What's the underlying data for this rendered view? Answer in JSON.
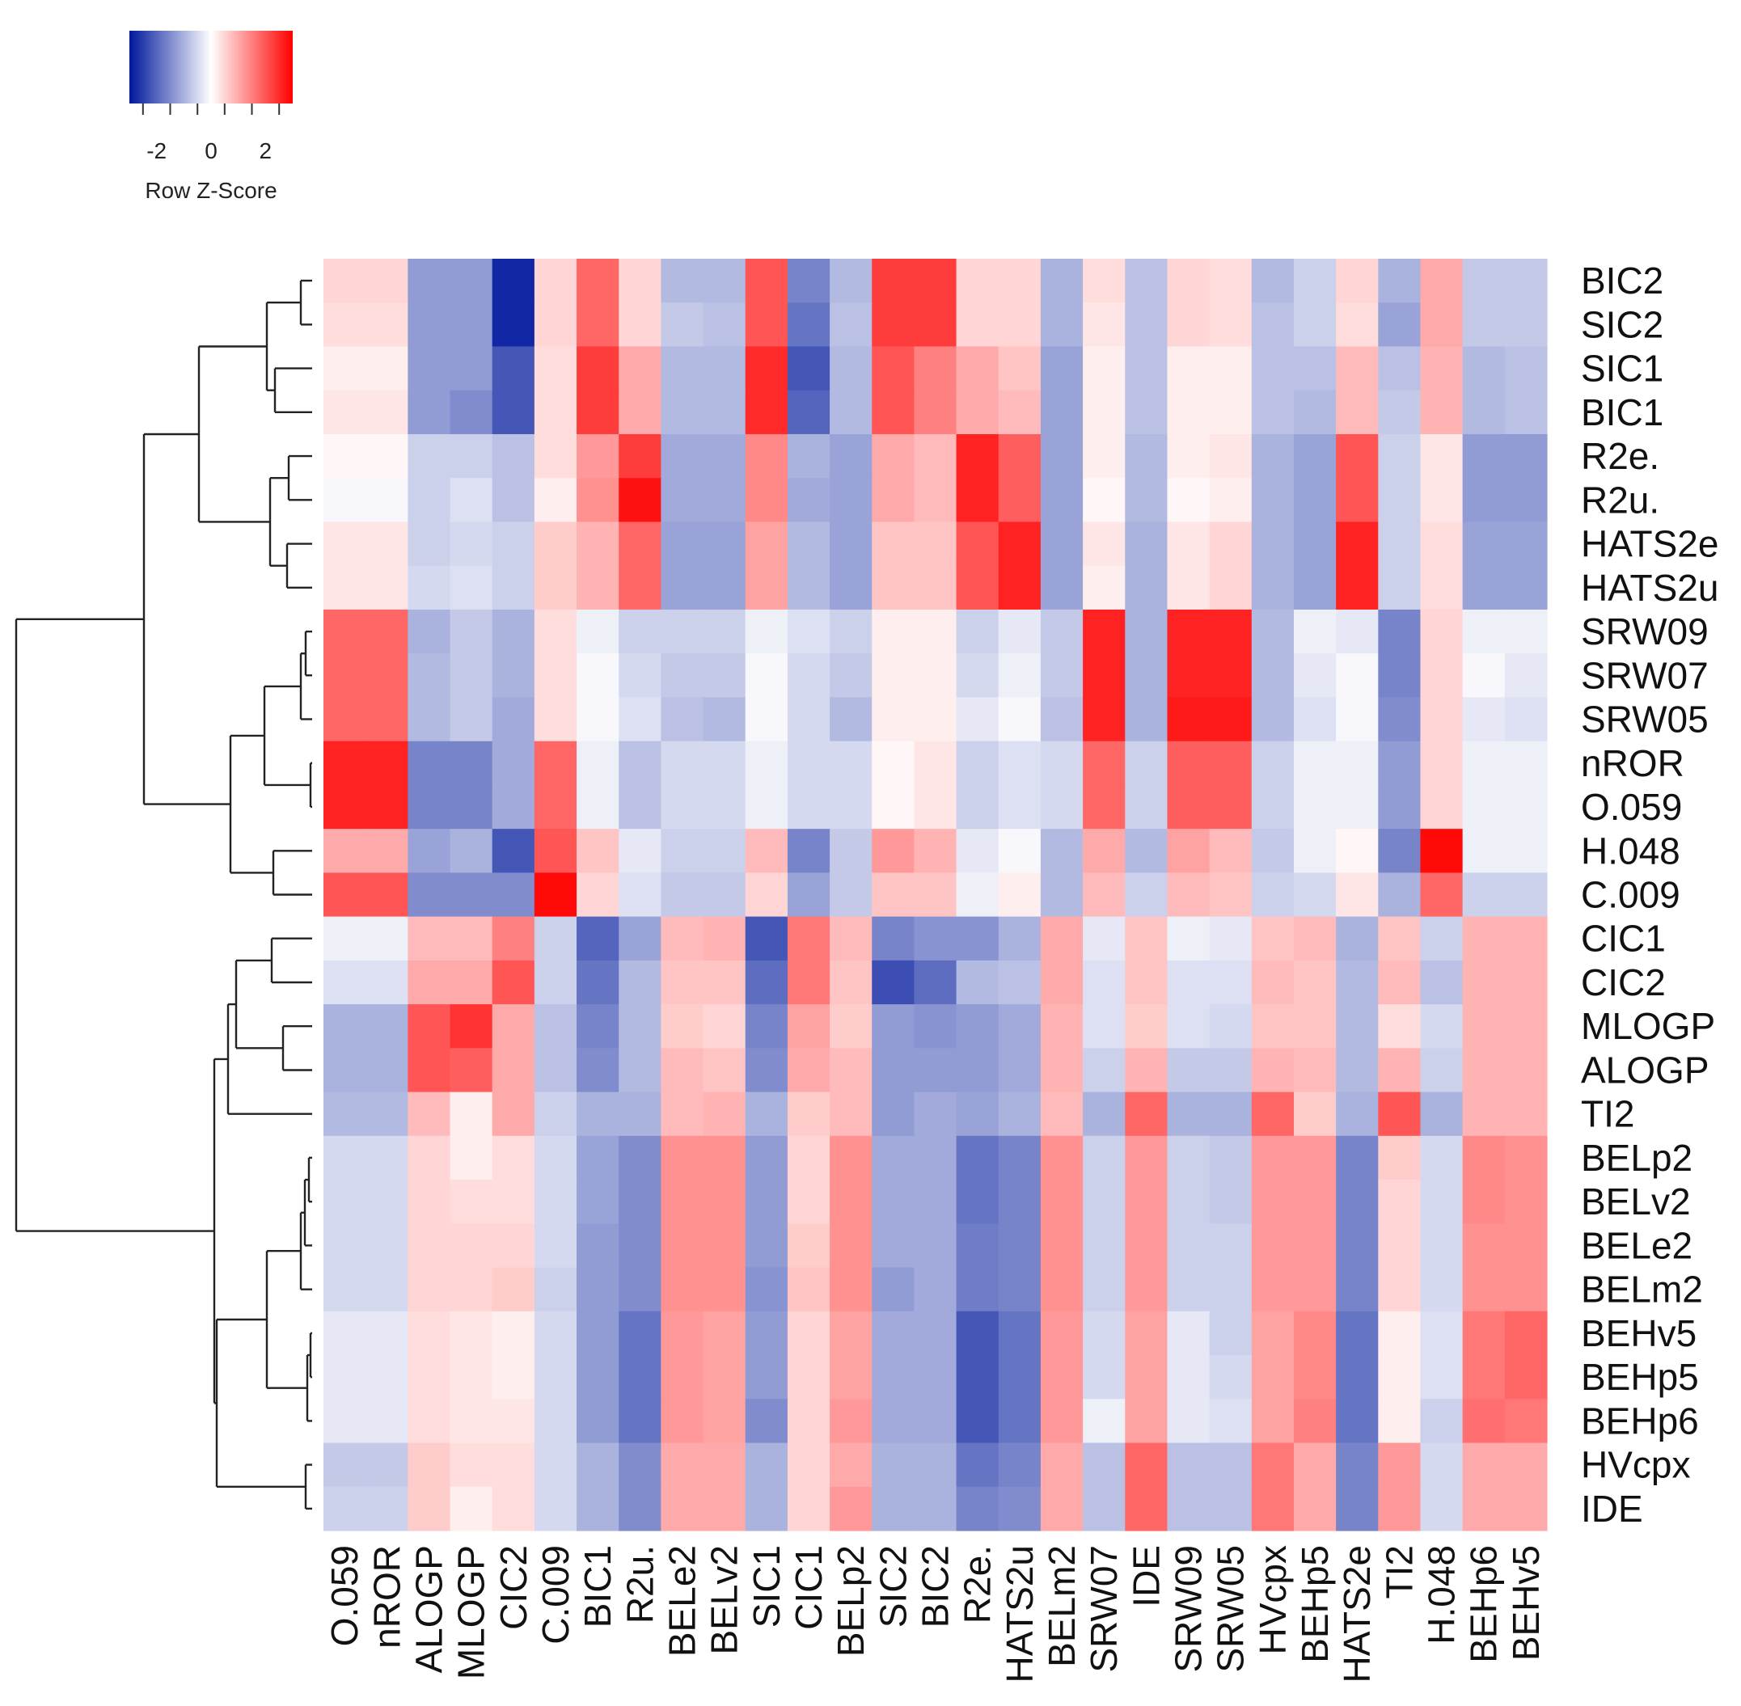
{
  "chart_data": {
    "type": "heatmap",
    "title": "",
    "xlabel": "",
    "ylabel": "",
    "color_key": {
      "title": "Row Z-Score",
      "ticks": [
        "-2",
        "0",
        "2"
      ],
      "range": [
        -3,
        3
      ],
      "colors": {
        "low": "#00189c",
        "mid": "#ffffff",
        "high": "#ff0000"
      }
    },
    "dendrogram": "rows",
    "rows": [
      "BIC2",
      "SIC2",
      "SIC1",
      "BIC1",
      "R2e.",
      "R2u.",
      "HATS2e",
      "HATS2u",
      "SRW09",
      "SRW07",
      "SRW05",
      "nROR",
      "O.059",
      "H.048",
      "C.009",
      "CIC1",
      "CIC2",
      "MLOGP",
      "ALOGP",
      "TI2",
      "BELp2",
      "BELv2",
      "BELe2",
      "BELm2",
      "BEHv5",
      "BEHp5",
      "BEHp6",
      "HVcpx",
      "IDE"
    ],
    "columns": [
      "O.059",
      "nROR",
      "ALOGP",
      "MLOGP",
      "CIC2",
      "C.009",
      "BIC1",
      "R2u.",
      "BELe2",
      "BELv2",
      "SIC1",
      "CIC1",
      "BELp2",
      "SIC2",
      "BIC2",
      "R2e.",
      "HATS2u",
      "BELm2",
      "SRW07",
      "IDE",
      "SRW09",
      "SRW05",
      "HVcpx",
      "BEHp5",
      "HATS2e",
      "TI2",
      "H.048",
      "BEHp6",
      "BEHv5"
    ],
    "values": [
      [
        0.5,
        0.5,
        -1.3,
        -1.3,
        -2.8,
        0.5,
        1.8,
        0.5,
        -0.9,
        -0.9,
        2.0,
        -1.6,
        -0.9,
        2.3,
        2.3,
        0.5,
        0.5,
        -1.0,
        0.4,
        -0.8,
        0.5,
        0.4,
        -0.9,
        -0.6,
        0.5,
        -1.0,
        1.0,
        -0.7,
        -0.7
      ],
      [
        0.4,
        0.4,
        -1.3,
        -1.3,
        -2.8,
        0.5,
        1.8,
        0.5,
        -0.7,
        -0.8,
        2.0,
        -1.8,
        -0.8,
        2.3,
        2.3,
        0.5,
        0.5,
        -1.0,
        0.3,
        -0.8,
        0.5,
        0.4,
        -0.8,
        -0.6,
        0.4,
        -1.2,
        1.0,
        -0.7,
        -0.7
      ],
      [
        0.2,
        0.2,
        -1.3,
        -1.3,
        -2.2,
        0.4,
        2.3,
        1.0,
        -0.9,
        -0.9,
        2.5,
        -2.2,
        -0.9,
        2.0,
        1.5,
        1.0,
        0.7,
        -1.2,
        0.2,
        -0.8,
        0.2,
        0.2,
        -0.8,
        -0.8,
        0.8,
        -0.8,
        0.9,
        -0.9,
        -0.8
      ],
      [
        0.3,
        0.3,
        -1.3,
        -1.5,
        -2.2,
        0.4,
        2.3,
        1.0,
        -0.9,
        -0.9,
        2.5,
        -2.0,
        -0.9,
        2.0,
        1.5,
        1.0,
        0.8,
        -1.2,
        0.2,
        -0.8,
        0.2,
        0.2,
        -0.8,
        -0.9,
        0.8,
        -0.7,
        0.9,
        -0.9,
        -0.8
      ],
      [
        0.1,
        0.1,
        -0.6,
        -0.6,
        -0.8,
        0.4,
        1.2,
        2.3,
        -1.1,
        -1.1,
        1.4,
        -1.0,
        -1.2,
        1.0,
        0.8,
        2.6,
        1.9,
        -1.2,
        0.2,
        -0.9,
        0.2,
        0.3,
        -1.0,
        -1.2,
        2.0,
        -0.6,
        0.3,
        -1.3,
        -1.3
      ],
      [
        -0.1,
        -0.1,
        -0.6,
        -0.4,
        -0.8,
        0.2,
        1.3,
        2.8,
        -1.1,
        -1.1,
        1.4,
        -1.1,
        -1.2,
        1.0,
        0.8,
        2.6,
        1.9,
        -1.2,
        0.1,
        -0.9,
        0.1,
        0.2,
        -1.0,
        -1.2,
        2.0,
        -0.6,
        0.3,
        -1.3,
        -1.3
      ],
      [
        0.3,
        0.3,
        -0.6,
        -0.5,
        -0.6,
        0.6,
        0.9,
        1.8,
        -1.2,
        -1.2,
        1.1,
        -0.9,
        -1.2,
        0.7,
        0.7,
        2.0,
        2.6,
        -1.2,
        0.3,
        -1.0,
        0.3,
        0.5,
        -1.0,
        -1.2,
        2.6,
        -0.6,
        0.4,
        -1.2,
        -1.2
      ],
      [
        0.3,
        0.3,
        -0.5,
        -0.4,
        -0.6,
        0.6,
        0.9,
        1.8,
        -1.2,
        -1.2,
        1.1,
        -0.9,
        -1.2,
        0.7,
        0.7,
        2.0,
        2.6,
        -1.2,
        0.2,
        -1.0,
        0.3,
        0.5,
        -1.0,
        -1.2,
        2.6,
        -0.6,
        0.4,
        -1.2,
        -1.2
      ],
      [
        1.8,
        1.8,
        -1.0,
        -0.7,
        -1.0,
        0.4,
        -0.2,
        -0.6,
        -0.6,
        -0.6,
        -0.2,
        -0.4,
        -0.6,
        0.2,
        0.2,
        -0.6,
        -0.3,
        -0.7,
        2.6,
        -1.0,
        2.6,
        2.6,
        -0.9,
        -0.2,
        -0.3,
        -1.6,
        0.5,
        -0.2,
        -0.2
      ],
      [
        1.8,
        1.8,
        -0.9,
        -0.7,
        -1.0,
        0.4,
        -0.1,
        -0.5,
        -0.7,
        -0.7,
        -0.1,
        -0.5,
        -0.7,
        0.2,
        0.2,
        -0.5,
        -0.2,
        -0.7,
        2.6,
        -1.0,
        2.6,
        2.6,
        -0.9,
        -0.3,
        -0.1,
        -1.6,
        0.5,
        -0.1,
        -0.3
      ],
      [
        1.8,
        1.8,
        -0.9,
        -0.7,
        -1.1,
        0.4,
        -0.1,
        -0.4,
        -0.8,
        -0.9,
        -0.1,
        -0.5,
        -0.9,
        0.2,
        0.2,
        -0.3,
        -0.1,
        -0.8,
        2.6,
        -1.0,
        2.7,
        2.7,
        -0.9,
        -0.4,
        -0.1,
        -1.5,
        0.5,
        -0.3,
        -0.4
      ],
      [
        2.6,
        2.6,
        -1.6,
        -1.6,
        -1.1,
        1.8,
        -0.2,
        -0.8,
        -0.5,
        -0.5,
        -0.2,
        -0.5,
        -0.5,
        0.1,
        0.3,
        -0.6,
        -0.4,
        -0.5,
        1.8,
        -0.6,
        1.9,
        1.9,
        -0.6,
        -0.2,
        -0.2,
        -1.3,
        0.5,
        -0.2,
        -0.2
      ],
      [
        2.6,
        2.6,
        -1.6,
        -1.6,
        -1.1,
        1.8,
        -0.2,
        -0.8,
        -0.5,
        -0.5,
        -0.2,
        -0.5,
        -0.5,
        0.1,
        0.3,
        -0.6,
        -0.4,
        -0.5,
        1.8,
        -0.6,
        1.9,
        1.9,
        -0.6,
        -0.2,
        -0.2,
        -1.3,
        0.5,
        -0.2,
        -0.2
      ],
      [
        1.0,
        1.0,
        -1.2,
        -1.0,
        -2.2,
        2.0,
        0.7,
        -0.3,
        -0.6,
        -0.6,
        0.8,
        -1.6,
        -0.7,
        1.2,
        0.9,
        -0.3,
        -0.1,
        -0.9,
        1.0,
        -0.9,
        1.1,
        0.8,
        -0.7,
        -0.2,
        0.1,
        -1.6,
        2.9,
        -0.2,
        -0.2
      ],
      [
        2.0,
        2.0,
        -1.5,
        -1.5,
        -1.5,
        2.9,
        0.5,
        -0.4,
        -0.7,
        -0.7,
        0.5,
        -1.2,
        -0.7,
        0.7,
        0.7,
        -0.2,
        0.2,
        -0.9,
        0.8,
        -0.6,
        0.8,
        0.7,
        -0.6,
        -0.5,
        0.3,
        -1.0,
        1.8,
        -0.6,
        -0.6
      ],
      [
        -0.2,
        -0.2,
        0.8,
        0.8,
        1.5,
        -0.6,
        -2.0,
        -1.2,
        0.8,
        0.9,
        -2.2,
        1.6,
        0.8,
        -1.6,
        -1.4,
        -1.4,
        -1.0,
        1.0,
        -0.3,
        0.7,
        -0.2,
        -0.3,
        0.7,
        0.8,
        -1.0,
        0.7,
        -0.6,
        0.9,
        0.9
      ],
      [
        -0.4,
        -0.4,
        1.0,
        1.0,
        2.0,
        -0.6,
        -1.8,
        -0.9,
        0.7,
        0.7,
        -1.9,
        1.6,
        0.7,
        -2.3,
        -1.9,
        -0.9,
        -0.8,
        1.0,
        -0.4,
        0.7,
        -0.4,
        -0.4,
        0.8,
        0.7,
        -0.9,
        0.8,
        -0.8,
        0.9,
        0.9
      ],
      [
        -1.0,
        -1.0,
        2.0,
        2.4,
        1.0,
        -0.8,
        -1.6,
        -0.9,
        0.6,
        0.5,
        -1.6,
        1.1,
        0.6,
        -1.3,
        -1.4,
        -1.3,
        -1.1,
        0.9,
        -0.4,
        0.6,
        -0.4,
        -0.5,
        0.7,
        0.7,
        -0.9,
        0.4,
        -0.5,
        0.9,
        0.9
      ],
      [
        -1.0,
        -1.0,
        2.0,
        1.9,
        1.0,
        -0.8,
        -1.5,
        -0.9,
        0.8,
        0.7,
        -1.5,
        1.0,
        0.8,
        -1.3,
        -1.3,
        -1.3,
        -1.1,
        0.9,
        -0.6,
        0.9,
        -0.7,
        -0.7,
        0.9,
        0.8,
        -0.9,
        0.9,
        -0.6,
        0.9,
        0.9
      ],
      [
        -0.9,
        -0.9,
        0.8,
        0.2,
        1.0,
        -0.6,
        -1.0,
        -1.0,
        0.8,
        0.9,
        -1.0,
        0.6,
        0.8,
        -1.3,
        -1.1,
        -1.2,
        -1.0,
        0.8,
        -1.0,
        1.8,
        -1.0,
        -1.0,
        1.8,
        0.6,
        -1.0,
        2.0,
        -1.0,
        0.9,
        0.9
      ],
      [
        -0.5,
        -0.5,
        0.5,
        0.2,
        0.4,
        -0.5,
        -1.2,
        -1.5,
        1.3,
        1.3,
        -1.3,
        0.5,
        1.3,
        -1.1,
        -1.1,
        -1.8,
        -1.6,
        1.3,
        -0.6,
        1.2,
        -0.6,
        -0.7,
        1.2,
        1.2,
        -1.6,
        0.6,
        -0.5,
        1.4,
        1.3
      ],
      [
        -0.5,
        -0.5,
        0.5,
        0.4,
        0.4,
        -0.5,
        -1.2,
        -1.5,
        1.3,
        1.3,
        -1.3,
        0.5,
        1.3,
        -1.1,
        -1.1,
        -1.8,
        -1.6,
        1.3,
        -0.6,
        1.2,
        -0.6,
        -0.7,
        1.2,
        1.2,
        -1.6,
        0.5,
        -0.5,
        1.4,
        1.3
      ],
      [
        -0.5,
        -0.5,
        0.5,
        0.5,
        0.5,
        -0.5,
        -1.3,
        -1.5,
        1.3,
        1.3,
        -1.3,
        0.6,
        1.3,
        -1.1,
        -1.1,
        -1.7,
        -1.6,
        1.3,
        -0.6,
        1.2,
        -0.6,
        -0.6,
        1.2,
        1.2,
        -1.6,
        0.5,
        -0.5,
        1.3,
        1.3
      ],
      [
        -0.5,
        -0.5,
        0.5,
        0.5,
        0.6,
        -0.6,
        -1.3,
        -1.5,
        1.3,
        1.3,
        -1.4,
        0.7,
        1.3,
        -1.3,
        -1.1,
        -1.7,
        -1.6,
        1.3,
        -0.6,
        1.2,
        -0.6,
        -0.6,
        1.2,
        1.2,
        -1.6,
        0.5,
        -0.5,
        1.3,
        1.3
      ],
      [
        -0.3,
        -0.3,
        0.4,
        0.3,
        0.2,
        -0.5,
        -1.3,
        -1.8,
        1.2,
        1.1,
        -1.3,
        0.5,
        1.1,
        -1.1,
        -1.1,
        -2.2,
        -1.8,
        1.2,
        -0.5,
        1.1,
        -0.3,
        -0.6,
        1.1,
        1.4,
        -1.8,
        0.2,
        -0.4,
        1.6,
        1.8
      ],
      [
        -0.3,
        -0.3,
        0.4,
        0.3,
        0.2,
        -0.5,
        -1.3,
        -1.8,
        1.2,
        1.1,
        -1.3,
        0.5,
        1.1,
        -1.1,
        -1.1,
        -2.2,
        -1.8,
        1.2,
        -0.5,
        1.1,
        -0.3,
        -0.5,
        1.1,
        1.4,
        -1.8,
        0.2,
        -0.4,
        1.6,
        1.8
      ],
      [
        -0.3,
        -0.3,
        0.4,
        0.3,
        0.3,
        -0.5,
        -1.3,
        -1.8,
        1.2,
        1.1,
        -1.5,
        0.5,
        1.2,
        -1.1,
        -1.1,
        -2.2,
        -1.8,
        1.2,
        -0.2,
        1.1,
        -0.3,
        -0.4,
        1.1,
        1.5,
        -1.8,
        0.2,
        -0.6,
        1.7,
        1.6
      ],
      [
        -0.7,
        -0.7,
        0.6,
        0.4,
        0.4,
        -0.5,
        -1.0,
        -1.5,
        1.0,
        1.0,
        -1.0,
        0.5,
        1.0,
        -1.0,
        -1.0,
        -1.8,
        -1.6,
        1.0,
        -0.8,
        1.8,
        -0.8,
        -0.8,
        1.6,
        1.0,
        -1.6,
        1.2,
        -0.5,
        1.0,
        1.0
      ],
      [
        -0.6,
        -0.6,
        0.6,
        0.2,
        0.4,
        -0.5,
        -1.0,
        -1.5,
        1.0,
        1.0,
        -1.0,
        0.5,
        1.2,
        -1.0,
        -1.0,
        -1.6,
        -1.5,
        1.0,
        -0.8,
        1.8,
        -0.8,
        -0.8,
        1.6,
        1.0,
        -1.6,
        1.2,
        -0.5,
        1.0,
        1.0
      ]
    ]
  }
}
